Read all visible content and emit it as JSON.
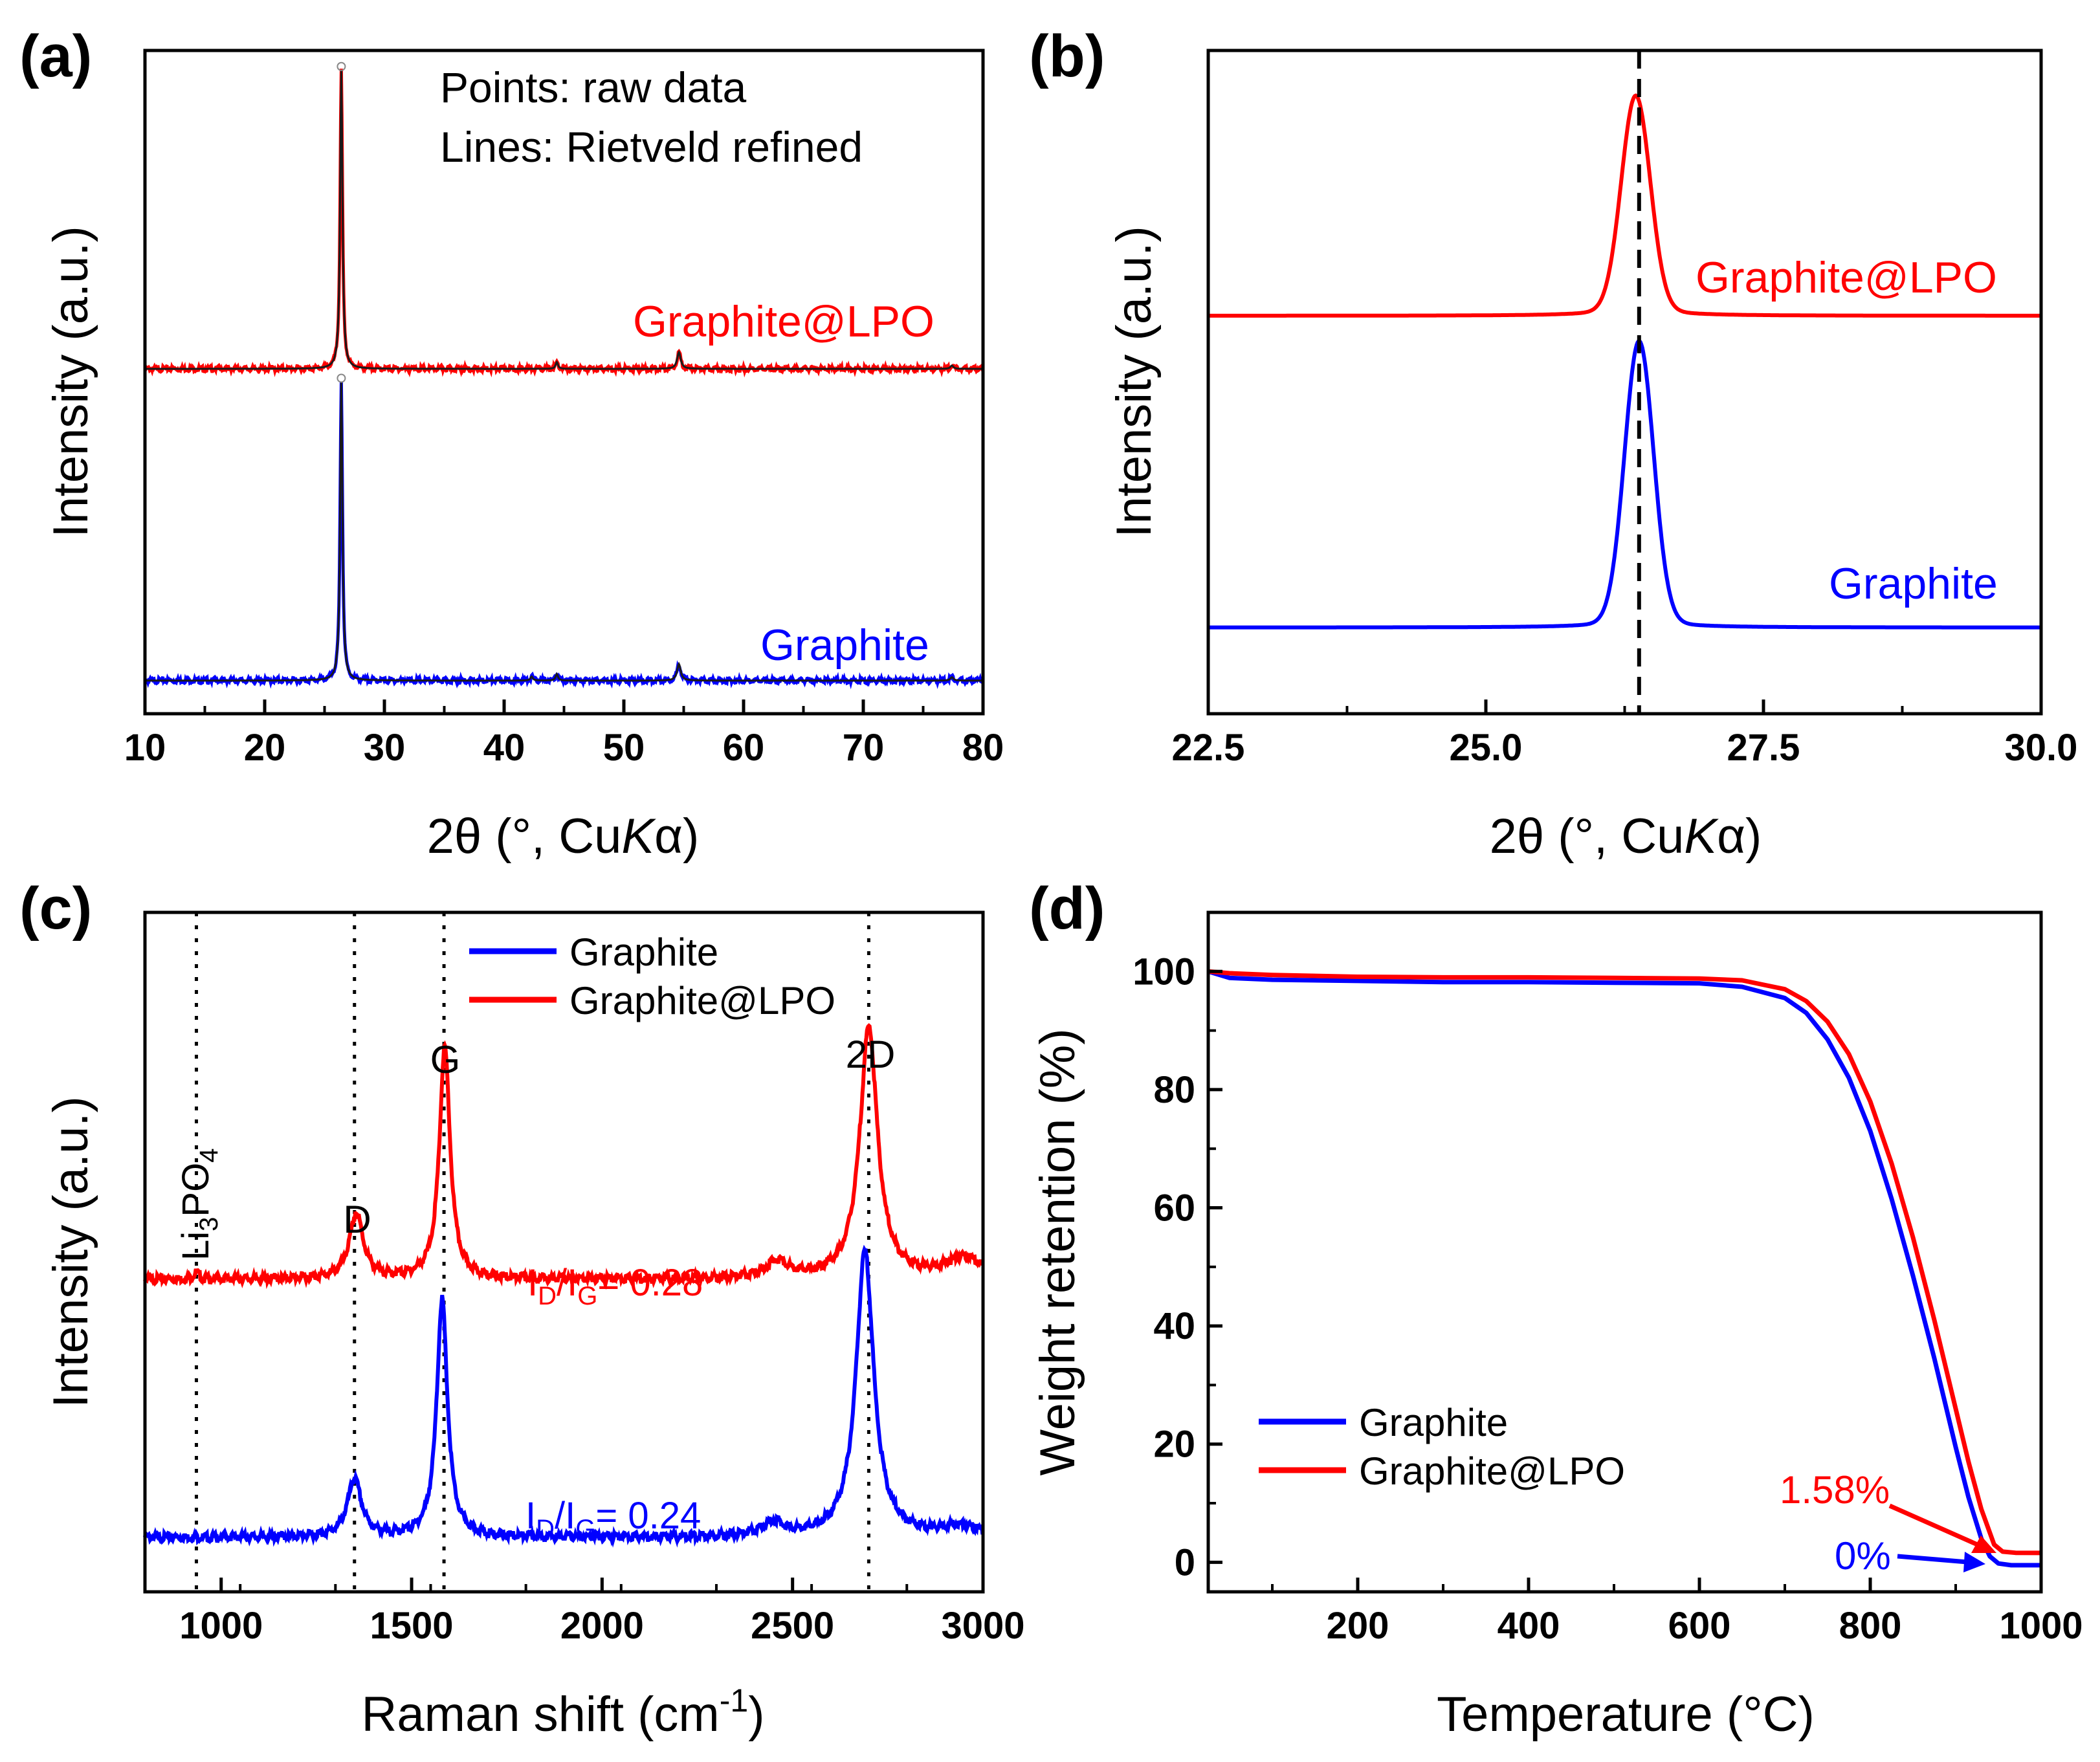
{
  "colors": {
    "graphite": "#0000ff",
    "lpo": "#ff0000",
    "axis": "#000000",
    "fit": "#1a1a1a"
  },
  "panels": {
    "a": {
      "label": "(a)",
      "xlabel": "2θ (°, CuKα)",
      "xlabel_parts": {
        "pre": "2θ (°, Cu",
        "italic": "K",
        "post": "α)"
      },
      "ylabel": "Intensity (a.u.)",
      "note_line1": "Points: raw data",
      "note_line2": "Lines: Rietveld refined",
      "label_lpo": "Graphite@LPO",
      "label_graphite": "Graphite"
    },
    "b": {
      "label": "(b)",
      "xlabel": "2θ (°, CuKα)",
      "xlabel_parts": {
        "pre": "2θ (°, Cu",
        "italic": "K",
        "post": "α)"
      },
      "ylabel": "Intensity (a.u.)",
      "label_lpo": "Graphite@LPO",
      "label_graphite": "Graphite"
    },
    "c": {
      "label": "(c)",
      "xlabel": "Raman shift (cm-1)",
      "xlabel_parts": {
        "pre": "Raman shift (cm",
        "sup": "-1",
        "post": ")"
      },
      "ylabel": "Intensity (a.u.)",
      "legend": [
        "Graphite",
        "Graphite@LPO"
      ],
      "peak_labels": {
        "li3po4": "Li3PO4",
        "d": "D",
        "g": "G",
        "twod": "2D"
      },
      "ratio_lpo": "ID/IG = 0.28",
      "ratio_graphite": "ID/IG = 0.24",
      "ratio_lpo_value": "= 0.28",
      "ratio_graphite_value": "= 0.24"
    },
    "d": {
      "label": "(d)",
      "xlabel": "Temperature (°C)",
      "ylabel": "Weight retention (%)",
      "legend": [
        "Graphite",
        "Graphite@LPO"
      ],
      "annot_lpo": "1.58%",
      "annot_graphite": "0%"
    }
  },
  "chart_data": [
    {
      "panel": "a",
      "type": "line",
      "xlabel": "2θ (°, CuKα)",
      "ylabel": "Intensity (a.u.)",
      "xlim": [
        10,
        80
      ],
      "xticks": [
        10,
        20,
        30,
        40,
        50,
        60,
        70,
        80
      ],
      "yticks_labeled": false,
      "series": [
        {
          "name": "Graphite@LPO",
          "color": "#ff0000",
          "baseline": 0.52,
          "peaks": [
            [
              26.4,
              0.115,
              0.45
            ],
            [
              44.4,
              0.12,
              0.01
            ],
            [
              54.6,
              0.18,
              0.025
            ],
            [
              77.4,
              0.15,
              0.005
            ]
          ]
        },
        {
          "name": "Graphite",
          "color": "#0000ff",
          "baseline": 0.05,
          "peaks": [
            [
              26.4,
              0.115,
              0.45
            ],
            [
              42.3,
              0.12,
              0.006
            ],
            [
              44.4,
              0.12,
              0.01
            ],
            [
              54.6,
              0.18,
              0.025
            ],
            [
              77.4,
              0.15,
              0.005
            ]
          ]
        }
      ]
    },
    {
      "panel": "b",
      "type": "line",
      "xlabel": "2θ (°, CuKα)",
      "ylabel": "Intensity (a.u.)",
      "xlim": [
        22.5,
        30.0
      ],
      "xticks": [
        22.5,
        25.0,
        27.5,
        30.0
      ],
      "dashed_vline_x": 26.38,
      "series": [
        {
          "name": "Graphite@LPO",
          "color": "#ff0000",
          "baseline": 0.6,
          "peak_x": 26.35,
          "peak_height": 0.32
        },
        {
          "name": "Graphite",
          "color": "#0000ff",
          "baseline": 0.13,
          "peak_x": 26.38,
          "peak_height": 0.42
        }
      ]
    },
    {
      "panel": "c",
      "type": "line",
      "xlabel": "Raman shift (cm-1)",
      "ylabel": "Intensity (a.u.)",
      "xlim": [
        800,
        3000
      ],
      "xticks": [
        1000,
        1500,
        2000,
        2500,
        3000
      ],
      "dotted_vlines_x": [
        935,
        1350,
        1585,
        2700
      ],
      "series": [
        {
          "name": "Graphite",
          "color": "#0000ff",
          "baseline": 0.08,
          "ID_IG": 0.24,
          "peaks": [
            [
              1350,
              22,
              0.085
            ],
            [
              1580,
              17,
              0.35
            ],
            [
              2450,
              35,
              0.02
            ],
            [
              2690,
              28,
              0.42
            ],
            [
              2940,
              60,
              0.015
            ]
          ]
        },
        {
          "name": "Graphite@LPO",
          "color": "#ff0000",
          "baseline": 0.46,
          "ID_IG": 0.28,
          "peaks": [
            [
              935,
              8,
              0.01
            ],
            [
              1355,
              22,
              0.095
            ],
            [
              1587,
              17,
              0.34
            ],
            [
              2460,
              35,
              0.025
            ],
            [
              2700,
              28,
              0.37
            ],
            [
              2950,
              60,
              0.03
            ]
          ]
        }
      ]
    },
    {
      "panel": "d",
      "type": "line",
      "xlabel": "Temperature (°C)",
      "ylabel": "Weight retention (%)",
      "xlim": [
        25,
        1000
      ],
      "ylim": [
        -5,
        110
      ],
      "xticks": [
        200,
        400,
        600,
        800,
        1000
      ],
      "yticks": [
        0,
        20,
        40,
        60,
        80,
        100
      ],
      "legend_position": "bottom-left",
      "series": [
        {
          "name": "Graphite",
          "color": "#0000ff",
          "x": [
            25,
            50,
            100,
            200,
            300,
            400,
            500,
            600,
            650,
            700,
            725,
            750,
            775,
            800,
            825,
            850,
            875,
            900,
            915,
            930,
            940,
            950,
            965,
            1000
          ],
          "y": [
            100,
            98.9,
            98.6,
            98.4,
            98.2,
            98.2,
            98.1,
            98.0,
            97.4,
            95.5,
            93.0,
            88.5,
            82.0,
            73.0,
            61.5,
            48.5,
            34.5,
            19.5,
            11.0,
            4.0,
            1.0,
            -0.2,
            -0.5,
            -0.5
          ]
        },
        {
          "name": "Graphite@LPO",
          "color": "#ff0000",
          "x": [
            25,
            50,
            100,
            200,
            300,
            400,
            500,
            600,
            650,
            700,
            725,
            750,
            775,
            800,
            825,
            850,
            875,
            900,
            915,
            930,
            945,
            955,
            970,
            1000
          ],
          "y": [
            100,
            99.7,
            99.4,
            99.1,
            99.0,
            99.0,
            98.9,
            98.8,
            98.5,
            97.0,
            95.0,
            91.5,
            86.0,
            78.0,
            67.5,
            55.0,
            41.0,
            26.0,
            17.0,
            9.0,
            3.0,
            1.8,
            1.6,
            1.58
          ]
        }
      ],
      "annotations": [
        {
          "text": "1.58%",
          "color": "#ff0000"
        },
        {
          "text": "0%",
          "color": "#0000ff"
        }
      ]
    }
  ]
}
